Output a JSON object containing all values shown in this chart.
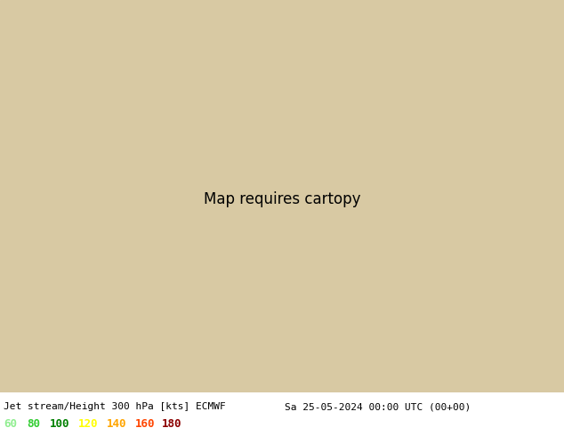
{
  "title_left": "Jet stream/Height 300 hPa [kts] ECMWF",
  "title_right": "Sa 25-05-2024 00:00 UTC (00+00)",
  "legend_values": [
    "60",
    "80",
    "100",
    "120",
    "140",
    "160",
    "180"
  ],
  "legend_colors": [
    "#90ee90",
    "#32cd32",
    "#008000",
    "#ffff00",
    "#ffa500",
    "#ff4500",
    "#8b0000"
  ],
  "fig_width": 6.34,
  "fig_height": 4.9,
  "dpi": 100,
  "map_extent": [
    20,
    150,
    10,
    75
  ],
  "land_color": "#d4c4a0",
  "ocean_color": "#b8d4e8",
  "tibet_color": "#c8aa80",
  "contour_color": "black",
  "contour_lw": 1.3,
  "title_fontsize": 8,
  "legend_fontsize": 9
}
